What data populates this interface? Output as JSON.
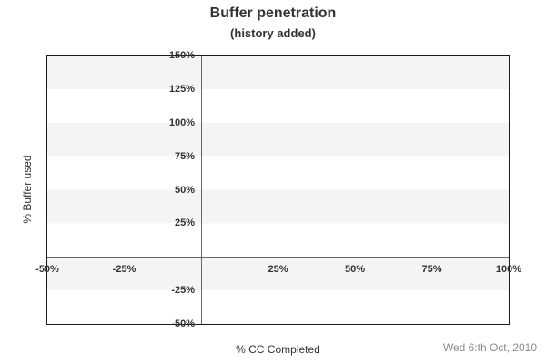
{
  "chart_data": {
    "type": "line",
    "title": "Buffer penetration",
    "subtitle": "(history added)",
    "xlabel": "% CC Completed",
    "ylabel": "% Buffer used",
    "xlim": [
      -50,
      100
    ],
    "ylim": [
      -50,
      150
    ],
    "x_ticks": [
      "-50%",
      "-25%",
      "25%",
      "50%",
      "75%",
      "100%"
    ],
    "y_ticks": [
      "150%",
      "125%",
      "100%",
      "75%",
      "50%",
      "25%",
      "-25%",
      "-50%"
    ],
    "series": [],
    "grid": "alternating horizontal bands every 25%, no vertical gridlines",
    "zero_axis_lines": true,
    "legend": "none",
    "date_label": "Wed 6:th Oct, 2010",
    "colors": {
      "band": "#f4f4f4",
      "frame": "#1a1a1a",
      "zero_line": "#666666",
      "text": "#333333",
      "muted": "#8a8a8a"
    }
  }
}
